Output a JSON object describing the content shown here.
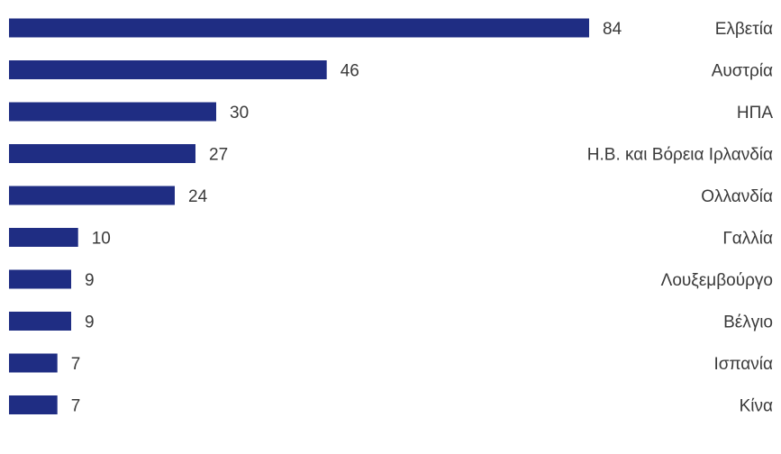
{
  "chart_data": {
    "type": "bar",
    "orientation": "horizontal",
    "title": "",
    "xlabel": "",
    "ylabel": "",
    "categories": [
      "Ελβετία",
      "Αυστρία",
      "ΗΠΑ",
      "Η.Β. και Βόρεια Ιρλανδία",
      "Ολλανδία",
      "Γαλλία",
      "Λουξεμβούργο",
      "Βέλγιο",
      "Ισπανία",
      "Κίνα"
    ],
    "values": [
      84,
      46,
      30,
      27,
      24,
      10,
      9,
      9,
      7,
      7
    ],
    "value_labels": [
      "84",
      "46",
      "30",
      "27",
      "24",
      "10",
      "9",
      "9",
      "7",
      "7"
    ],
    "xlim": [
      0,
      84
    ],
    "bar_color": "#1f2d83",
    "grid": false,
    "legend": "none"
  }
}
